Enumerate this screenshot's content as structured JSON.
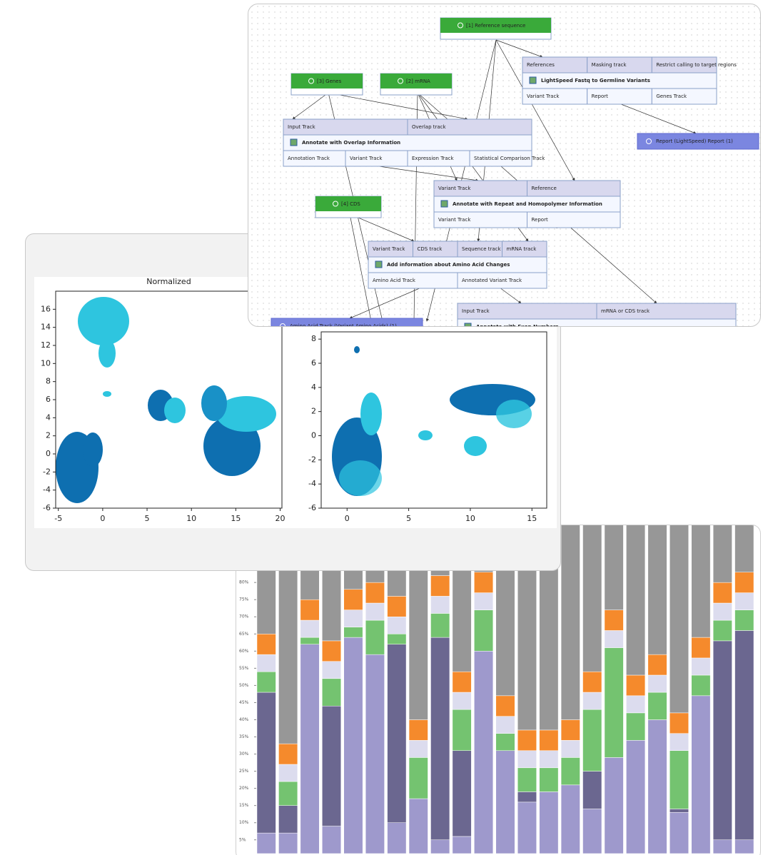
{
  "workflow": {
    "nodes": [
      {
        "label": "[1] Reference sequence"
      },
      {
        "label": "[3] Genes"
      },
      {
        "label": "[2] mRNA"
      },
      {
        "label": "[4] CDS"
      },
      {
        "inputs": [
          "References",
          "Masking track",
          "Restrict calling to target regions"
        ],
        "title": "LightSpeed Fastq to Germline Variants",
        "outputs": [
          "Variant Track",
          "Report",
          "Genes Track"
        ]
      },
      {
        "inputs": [
          "Input Track",
          "Overlap track"
        ],
        "title": "Annotate with Overlap Information",
        "outputs": [
          "Annotation Track",
          "Variant Track",
          "Expression Track",
          "Statistical Comparison Track"
        ]
      },
      {
        "label": "Report (LightSpeed) Report (1)"
      },
      {
        "inputs": [
          "Variant Track",
          "Reference"
        ],
        "title": "Annotate with Repeat and Homopolymer Information",
        "outputs": [
          "Variant Track",
          "Report"
        ]
      },
      {
        "inputs": [
          "Variant Track",
          "CDS track",
          "Sequence track",
          "mRNA track"
        ],
        "title": "Add information about Amino Acid Changes",
        "outputs": [
          "Amino Acid Track",
          "Annotated Variant Track"
        ]
      },
      {
        "inputs": [
          "Input Track",
          "mRNA or CDS track"
        ],
        "title": "Annotate with Exon Numbers",
        "outputs": []
      },
      {
        "label": "Amino Acid Track (Variant Amino Acids) (1)"
      }
    ]
  },
  "chart_data": [
    {
      "type": "scatter",
      "title": "Normalized",
      "xlim": [
        -5.3,
        20.2
      ],
      "xticks": [
        -5,
        0,
        5,
        10,
        15,
        20
      ],
      "ylim": [
        -6,
        18
      ],
      "yticks": [
        -6,
        -4,
        -2,
        0,
        2,
        4,
        6,
        8,
        10,
        12,
        14,
        16
      ]
    },
    {
      "type": "scatter",
      "xlim": [
        -2.1,
        16.2
      ],
      "xticks": [
        0,
        5,
        10,
        15
      ],
      "ylim": [
        -6,
        8.6
      ],
      "yticks": [
        -6,
        -4,
        -2,
        0,
        2,
        4,
        6,
        8
      ]
    },
    {
      "type": "stacked-bar",
      "ylim": [
        1,
        100
      ],
      "yticks": [
        {
          "value": 5,
          "label": "5%"
        },
        {
          "value": 10,
          "label": "10%"
        },
        {
          "value": 15,
          "label": "15%"
        },
        {
          "value": 20,
          "label": "20%"
        },
        {
          "value": 25,
          "label": "25%"
        },
        {
          "value": 30,
          "label": "30%"
        },
        {
          "value": 35,
          "label": "35%"
        },
        {
          "value": 40,
          "label": "40%"
        },
        {
          "value": 45,
          "label": "45%"
        },
        {
          "value": 50,
          "label": "50%"
        },
        {
          "value": 55,
          "label": "55%"
        },
        {
          "value": 60,
          "label": "60%"
        },
        {
          "value": 65,
          "label": "65%"
        },
        {
          "value": 70,
          "label": "70%"
        },
        {
          "value": 75,
          "label": "75%"
        },
        {
          "value": 80,
          "label": "80%"
        }
      ],
      "series": [
        {
          "color": "#9e99cc",
          "values": [
            7,
            7,
            62,
            9,
            64,
            59,
            10,
            17,
            5,
            6,
            60,
            31,
            16,
            19,
            21,
            14,
            29,
            34,
            40,
            13,
            47,
            5,
            5
          ]
        },
        {
          "color": "#6b6790",
          "values": [
            41,
            8,
            0,
            35,
            0,
            0,
            52,
            0,
            59,
            25,
            0,
            0,
            3,
            0,
            0,
            11,
            0,
            0,
            0,
            1,
            0,
            58,
            61
          ]
        },
        {
          "color": "#74c370",
          "values": [
            6,
            7,
            2,
            8,
            3,
            10,
            3,
            12,
            7,
            12,
            12,
            5,
            7,
            7,
            8,
            18,
            32,
            8,
            8,
            17,
            6,
            6,
            6
          ]
        },
        {
          "color": "#dcdcee",
          "values": [
            5,
            5,
            5,
            5,
            5,
            5,
            5,
            5,
            5,
            5,
            5,
            5,
            5,
            5,
            5,
            5,
            5,
            5,
            5,
            5,
            5,
            5,
            5
          ]
        },
        {
          "color": "#f58a2c",
          "values": [
            6,
            6,
            6,
            6,
            6,
            6,
            6,
            6,
            6,
            6,
            6,
            6,
            6,
            6,
            6,
            6,
            6,
            6,
            6,
            6,
            6,
            6,
            6
          ]
        },
        {
          "color": "#979797",
          "values": [
            35,
            67,
            25,
            37,
            22,
            20,
            24,
            60,
            18,
            46,
            17,
            53,
            63,
            63,
            60,
            46,
            28,
            47,
            41,
            58,
            36,
            20,
            17
          ]
        }
      ]
    }
  ]
}
